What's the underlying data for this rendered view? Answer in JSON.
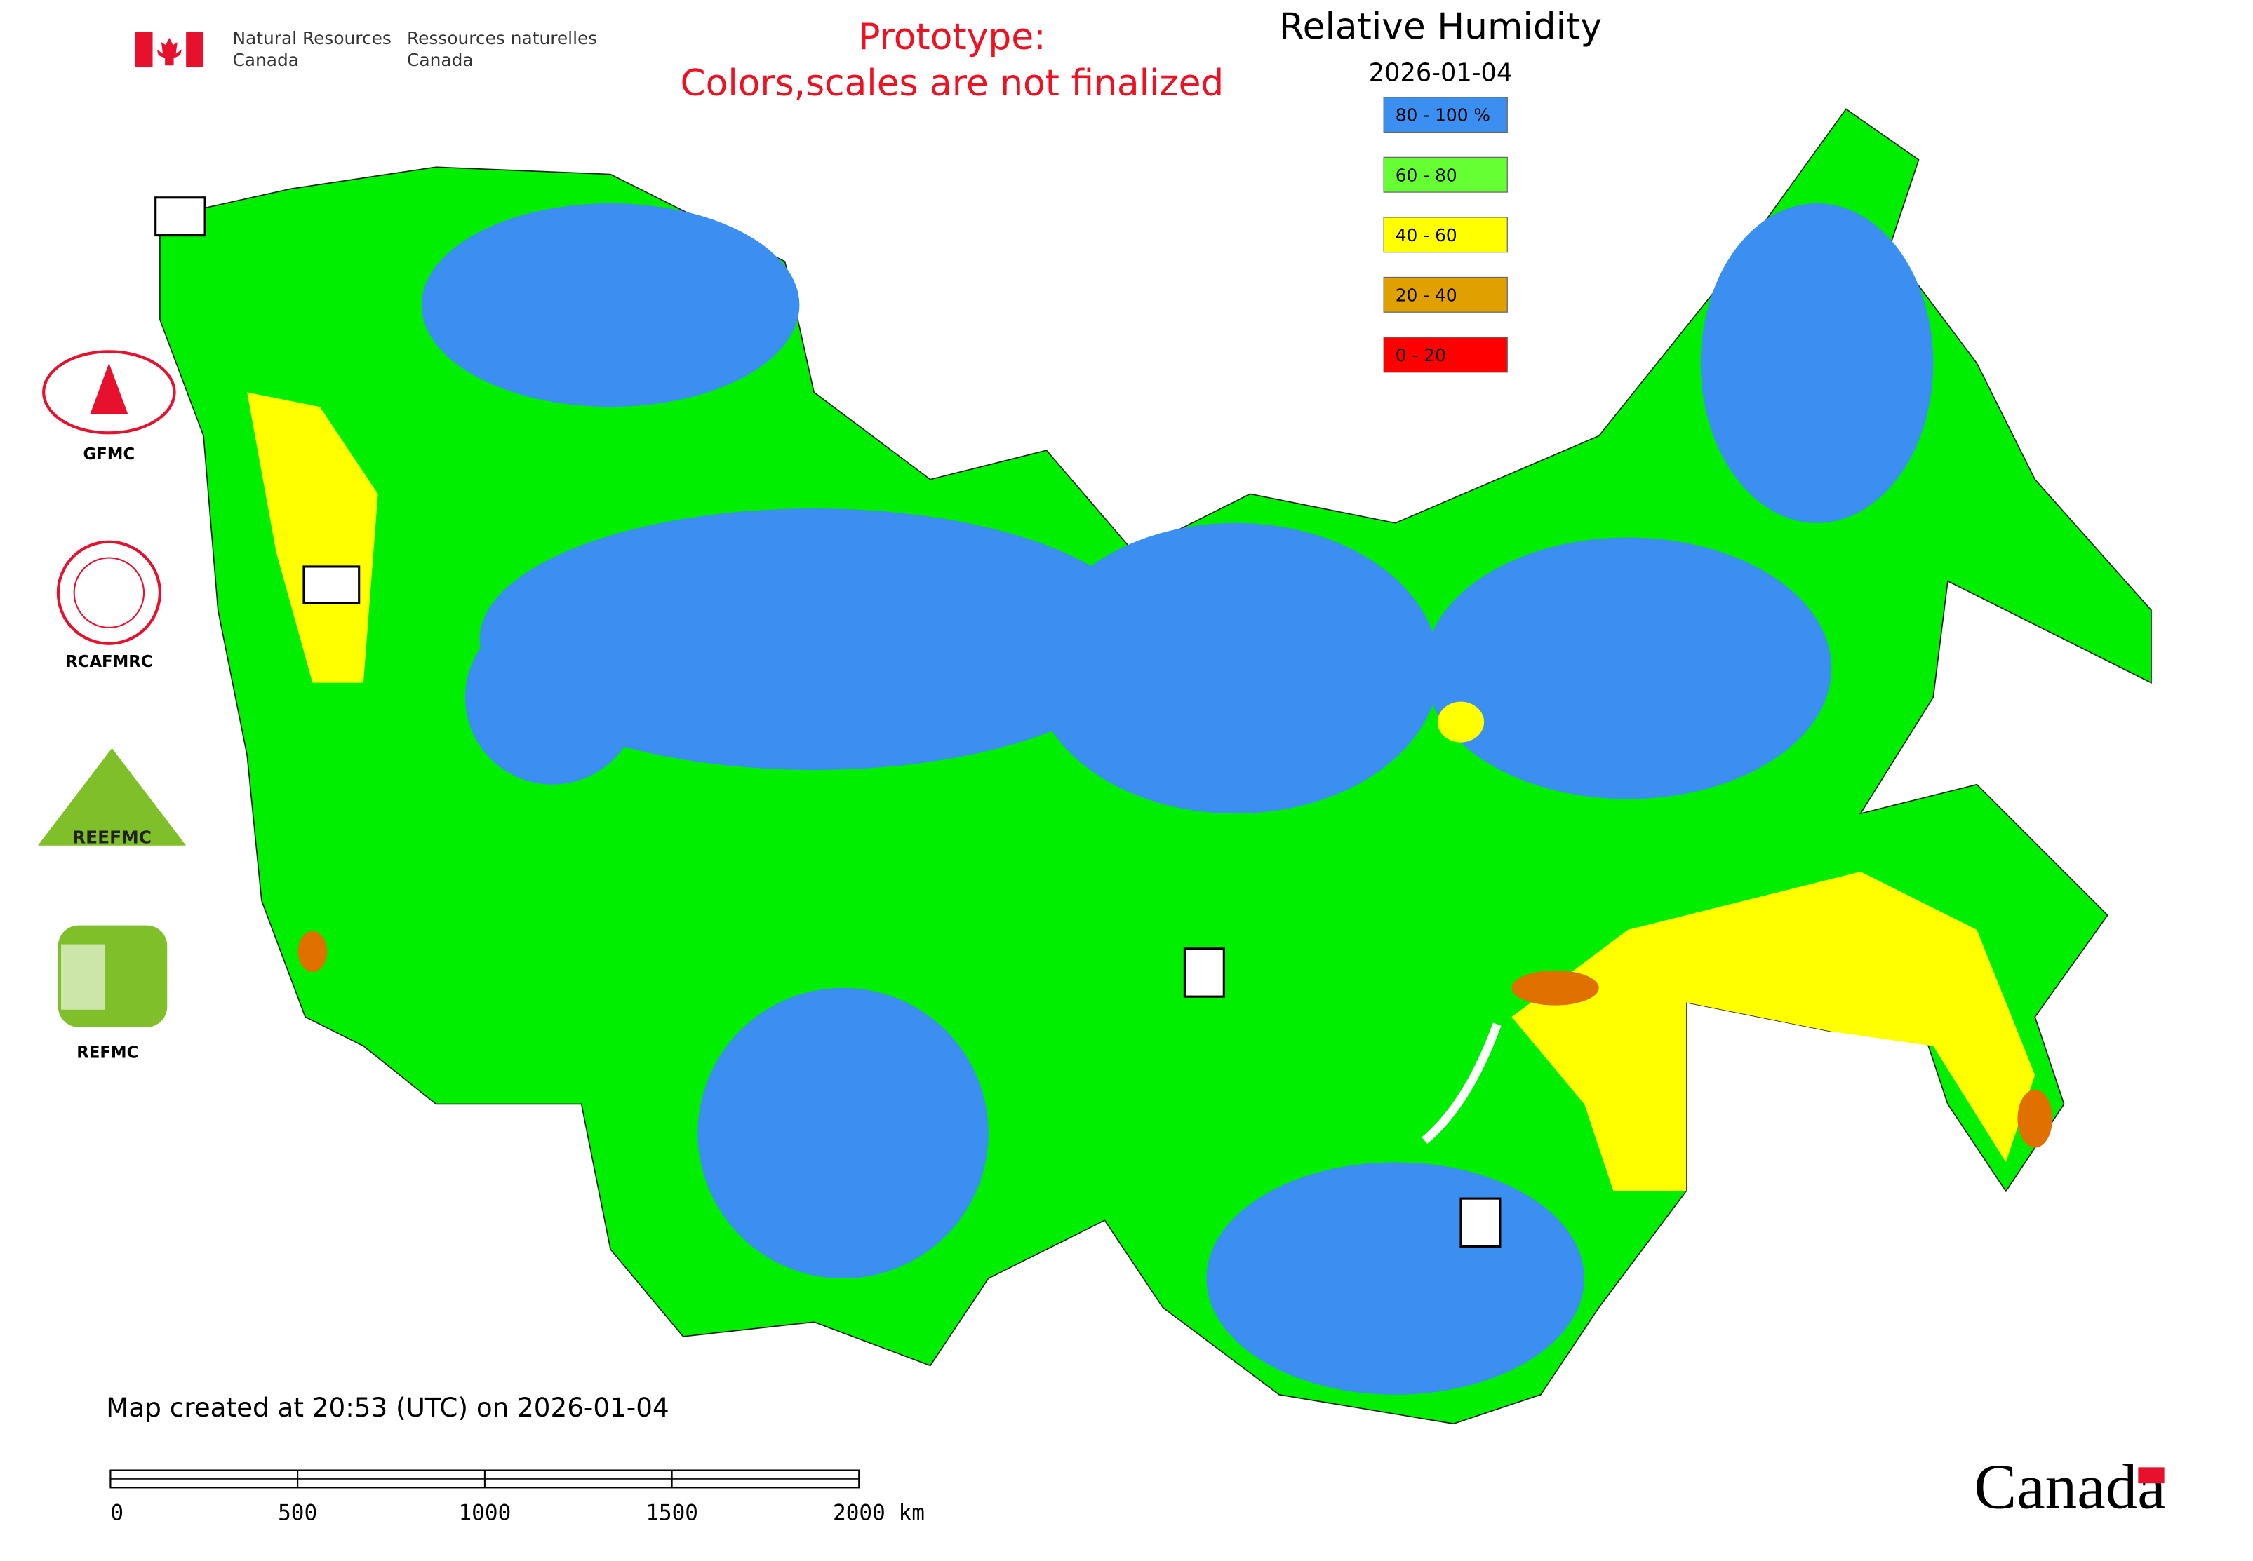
{
  "header": {
    "department_en": [
      "Natural Resources",
      "Canada"
    ],
    "department_fr": [
      "Ressources naturelles",
      "Canada"
    ],
    "notice": [
      "Prototype:",
      "Colors,scales are not finalized"
    ]
  },
  "map": {
    "title": "Relative Humidity",
    "date": "2026-01-04",
    "legend": [
      {
        "label": "80 - 100 %",
        "color": "#3a8ff0"
      },
      {
        "label": "60 - 80",
        "color": "#66ff33"
      },
      {
        "label": "40 - 60",
        "color": "#ffff00"
      },
      {
        "label": "20 - 40",
        "color": "#e0a000"
      },
      {
        "label": "0 - 20",
        "color": "#ff0000"
      }
    ],
    "footer": "Map created at 20:53 (UTC) on 2026-01-04",
    "scale_bar": [
      "0",
      "500",
      "1000",
      "1500",
      "2000 km"
    ]
  },
  "logos": [
    "GFMC",
    "RCAFMRC",
    "REEFMC",
    "REFMC"
  ],
  "wordmark": "Canada"
}
